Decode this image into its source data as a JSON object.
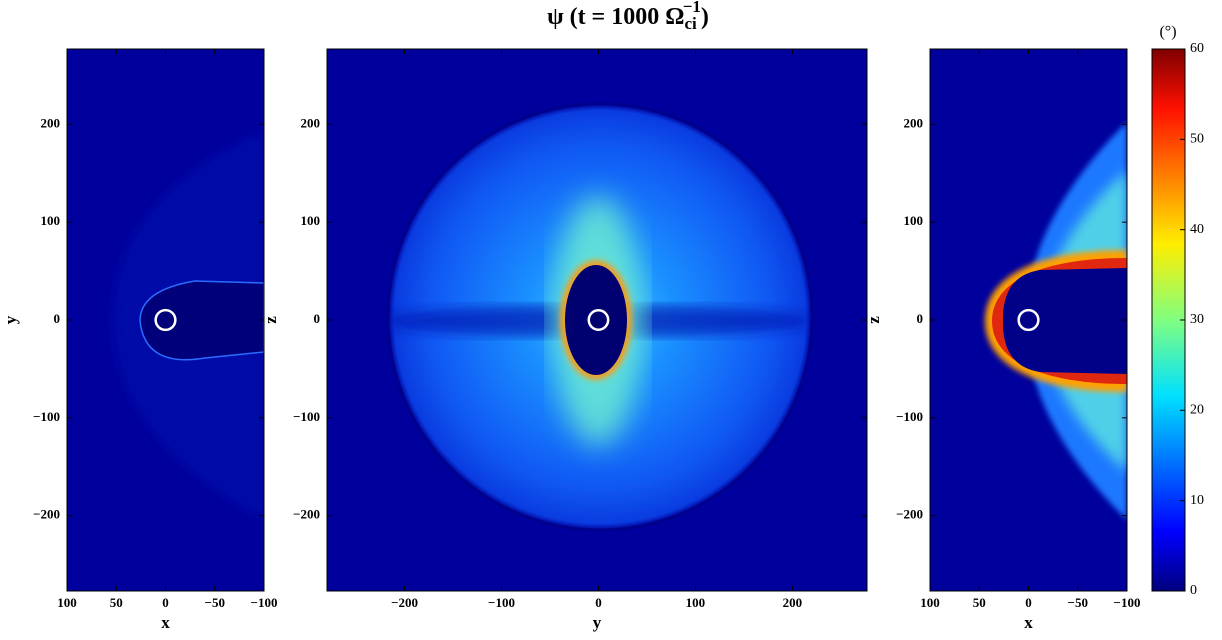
{
  "title": "ψ (t = 1000 Ω",
  "title_sub": "ci",
  "title_sup": "−1",
  "title_end": ")",
  "chart_data": [
    {
      "type": "heatmap",
      "xlabel": "x",
      "ylabel": "y",
      "xlim": [
        100,
        -100
      ],
      "ylim": [
        -277,
        277
      ],
      "xticks": [
        100,
        50,
        0,
        {
          "value": -50,
          "label": "−50"
        },
        {
          "value": -100,
          "label": "−100"
        }
      ],
      "yticks": [
        {
          "value": -200,
          "label": "−200"
        },
        {
          "value": -100,
          "label": "−100"
        },
        0,
        100,
        200
      ],
      "planet": {
        "x": 0,
        "y": 0,
        "r": 10
      }
    },
    {
      "type": "heatmap",
      "xlabel": "y",
      "ylabel": "z",
      "xlim": [
        -280,
        277
      ],
      "ylim": [
        -277,
        277
      ],
      "xticks": [
        {
          "value": -200,
          "label": "−200"
        },
        {
          "value": -100,
          "label": "−100"
        },
        0,
        100,
        200
      ],
      "yticks": [
        {
          "value": -200,
          "label": "−200"
        },
        {
          "value": -100,
          "label": "−100"
        },
        0,
        100,
        200
      ],
      "planet": {
        "x": 0,
        "y": 0,
        "r": 10
      }
    },
    {
      "type": "heatmap",
      "xlabel": "x",
      "ylabel": "z",
      "xlim": [
        100,
        -100
      ],
      "ylim": [
        -277,
        277
      ],
      "xticks": [
        100,
        50,
        0,
        {
          "value": -50,
          "label": "−50"
        },
        {
          "value": -100,
          "label": "−100"
        }
      ],
      "yticks": [
        {
          "value": -200,
          "label": "−200"
        },
        {
          "value": -100,
          "label": "−100"
        },
        0,
        100,
        200
      ],
      "planet": {
        "x": 0,
        "y": 0,
        "r": 10
      }
    }
  ],
  "colorbar": {
    "label": "(°)",
    "lim": [
      0,
      60
    ],
    "ticks": [
      0,
      10,
      20,
      30,
      40,
      50,
      60
    ],
    "colormap": "jet"
  }
}
